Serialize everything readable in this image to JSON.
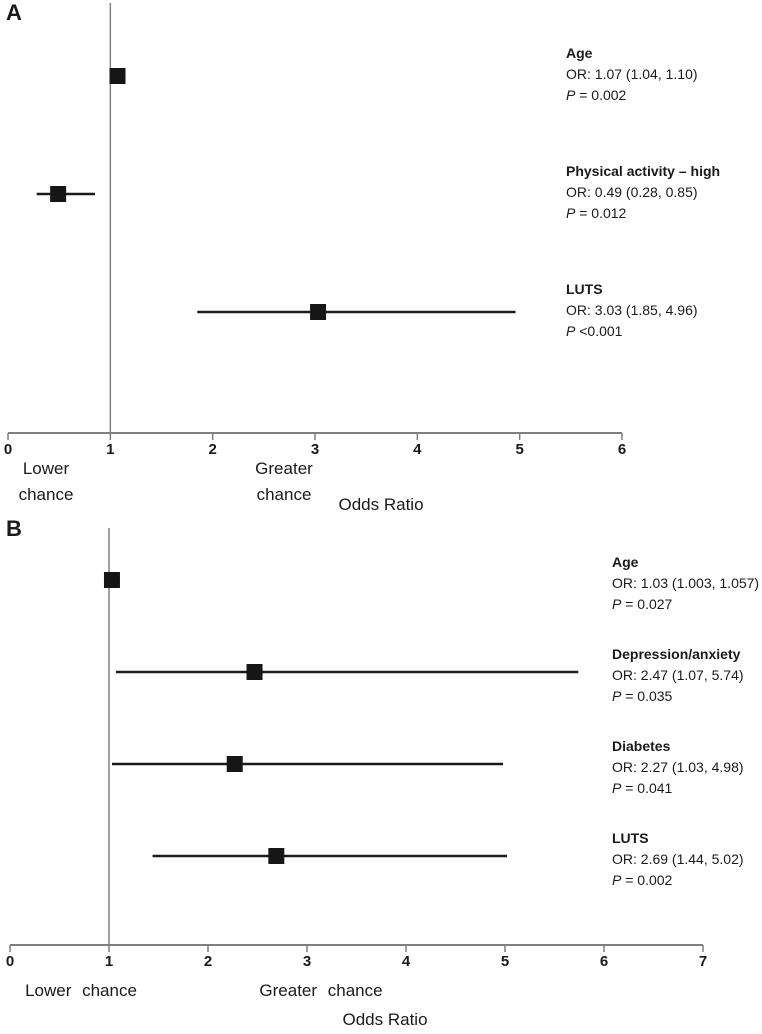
{
  "chart_data": [
    {
      "type": "scatter",
      "subtype": "forest-plot",
      "panel_letter": "A",
      "xlabel": "Odds Ratio",
      "xlim": [
        0,
        6
      ],
      "xticks": [
        "0",
        "1",
        "2",
        "3",
        "4",
        "5",
        "6"
      ],
      "reference_line_x": 1,
      "direction_labels": {
        "left": "Lower chance",
        "right": "Greater chance"
      },
      "legend_position": "right",
      "grid": false,
      "rows": [
        {
          "label": "Age",
          "or": 1.07,
          "ci_low": 1.04,
          "ci_high": 1.1,
          "or_text": "OR: 1.07 (1.04, 1.10)",
          "p_label": "P",
          "p_value": "= 0.002"
        },
        {
          "label": "Physical activity – high",
          "or": 0.49,
          "ci_low": 0.28,
          "ci_high": 0.85,
          "or_text": "OR: 0.49 (0.28, 0.85)",
          "p_label": "P",
          "p_value": "= 0.012"
        },
        {
          "label": "LUTS",
          "or": 3.03,
          "ci_low": 1.85,
          "ci_high": 4.96,
          "or_text": "OR: 3.03 (1.85, 4.96)",
          "p_label": "P",
          "p_value": "<0.001"
        }
      ]
    },
    {
      "type": "scatter",
      "subtype": "forest-plot",
      "panel_letter": "B",
      "xlabel": "Odds Ratio",
      "xlim": [
        0,
        7
      ],
      "xticks": [
        "0",
        "1",
        "2",
        "3",
        "4",
        "5",
        "6",
        "7"
      ],
      "reference_line_x": 1,
      "direction_labels": {
        "left": "Lower chance",
        "right": "Greater chance"
      },
      "legend_position": "right",
      "grid": false,
      "rows": [
        {
          "label": "Age",
          "or": 1.03,
          "ci_low": 1.003,
          "ci_high": 1.057,
          "or_text": "OR: 1.03 (1.003, 1.057)",
          "p_label": "P",
          "p_value": "= 0.027"
        },
        {
          "label": "Depression/anxiety",
          "or": 2.47,
          "ci_low": 1.07,
          "ci_high": 5.74,
          "or_text": "OR: 2.47 (1.07, 5.74)",
          "p_label": "P",
          "p_value": "= 0.035"
        },
        {
          "label": "Diabetes",
          "or": 2.27,
          "ci_low": 1.03,
          "ci_high": 4.98,
          "or_text": "OR: 2.27 (1.03, 4.98)",
          "p_label": "P",
          "p_value": "= 0.041"
        },
        {
          "label": "LUTS",
          "or": 2.69,
          "ci_low": 1.44,
          "ci_high": 5.02,
          "or_text": "OR: 2.69 (1.44, 5.02)",
          "p_label": "P",
          "p_value": "= 0.002"
        }
      ]
    }
  ],
  "colors": {
    "marker": "#161616",
    "ci_line": "#1a1a1a",
    "axis": "#7f7f7f",
    "reference_line": "#808080",
    "text": "#1a1a1a"
  }
}
